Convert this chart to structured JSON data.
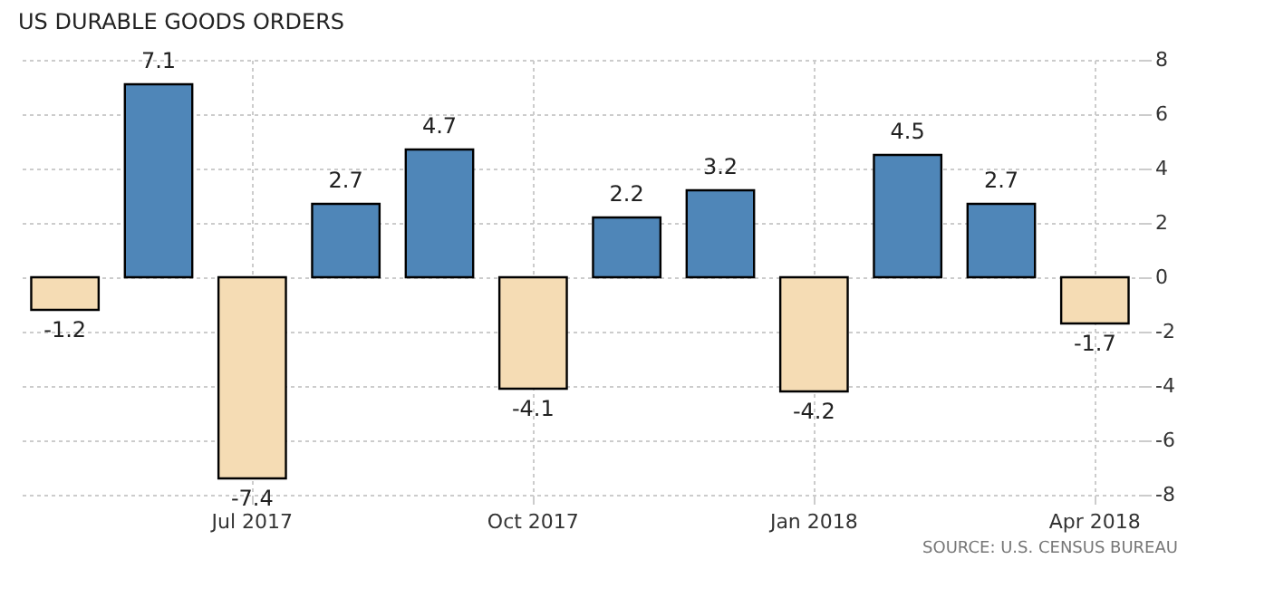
{
  "chart_data": {
    "type": "bar",
    "title": "US DURABLE GOODS ORDERS",
    "categories": [
      null,
      null,
      "Jul 2017",
      null,
      null,
      "Oct 2017",
      null,
      null,
      "Jan 2018",
      null,
      null,
      "Apr 2018"
    ],
    "values": [
      -1.2,
      7.1,
      -7.4,
      2.7,
      4.7,
      -4.1,
      2.2,
      3.2,
      -4.2,
      4.5,
      2.7,
      -1.7
    ],
    "colors": [
      "#f5dcb4",
      "#4f86b8",
      "#f5dcb4",
      "#4f86b8",
      "#4f86b8",
      "#f5dcb4",
      "#4f86b8",
      "#4f86b8",
      "#f5dcb4",
      "#4f86b8",
      "#4f86b8",
      "#f5dcb4"
    ],
    "ylim": [
      -8,
      8
    ],
    "yticks": [
      -8,
      -6,
      -4,
      -2,
      0,
      2,
      4,
      6,
      8
    ],
    "grid": true,
    "data_labels": true,
    "annotations": [
      "SOURCE: U.S. CENSUS BUREAU"
    ]
  }
}
